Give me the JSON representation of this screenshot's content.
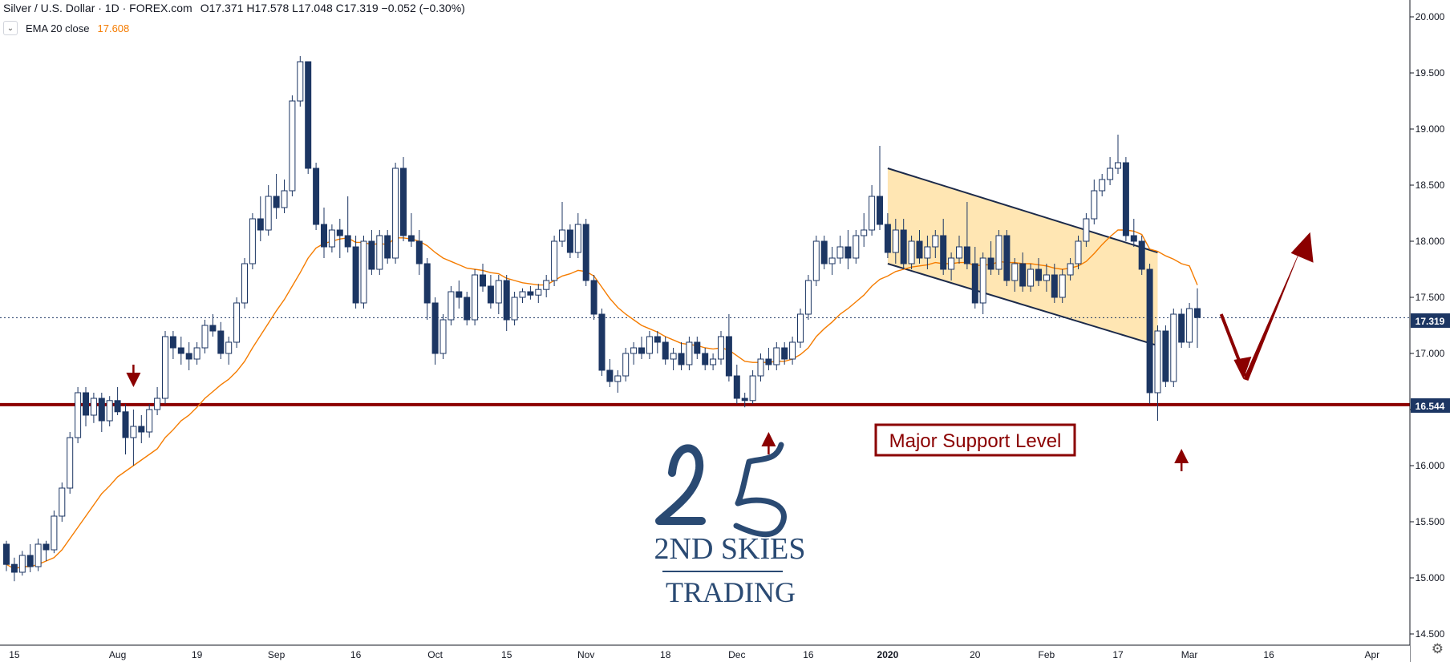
{
  "legend": {
    "title": "Silver / U.S. Dollar · 1D · FOREX.com",
    "open_label": "O",
    "open": "17.371",
    "high_label": "H",
    "high": "17.578",
    "low_label": "L",
    "low": "17.048",
    "close_label": "C",
    "close": "17.319",
    "change": "−0.052 (−0.30%)",
    "indicator": "EMA 20 close",
    "indicator_value": "17.608",
    "toggle_icon": "chevron-down-icon"
  },
  "price_tags": {
    "current": "17.319",
    "support": "16.544"
  },
  "annotation": {
    "support_label": "Major Support Level"
  },
  "logo": {
    "line1": "2ND SKIES",
    "line2": "TRADING"
  },
  "colors": {
    "bull": "#ffffff",
    "bear": "#1c3663",
    "wick": "#1c3663",
    "ema": "#f57c00",
    "support": "#8b0000",
    "channel_fill": "#ffe2a6",
    "current_line": "#1c3663",
    "logo": "#2a4a73"
  },
  "chart_data": {
    "type": "candlestick",
    "title": "Silver / U.S. Dollar",
    "timeframe": "1D",
    "source": "FOREX.com",
    "y_axis": {
      "range": [
        14.4,
        20.15
      ],
      "ticks": [
        "14.500",
        "15.000",
        "15.500",
        "16.000",
        "16.500",
        "17.000",
        "17.500",
        "18.000",
        "18.500",
        "19.000",
        "19.500",
        "20.000"
      ]
    },
    "x_axis": {
      "ticks": [
        {
          "label": "15",
          "x": 1
        },
        {
          "label": "Aug",
          "x": 14
        },
        {
          "label": "19",
          "x": 24
        },
        {
          "label": "Sep",
          "x": 34
        },
        {
          "label": "16",
          "x": 44
        },
        {
          "label": "Oct",
          "x": 54
        },
        {
          "label": "15",
          "x": 63
        },
        {
          "label": "Nov",
          "x": 73
        },
        {
          "label": "18",
          "x": 83
        },
        {
          "label": "Dec",
          "x": 92
        },
        {
          "label": "16",
          "x": 101
        },
        {
          "label": "2020",
          "x": 111
        },
        {
          "label": "20",
          "x": 122
        },
        {
          "label": "Feb",
          "x": 131
        },
        {
          "label": "17",
          "x": 140
        },
        {
          "label": "Mar",
          "x": 149
        },
        {
          "label": "16",
          "x": 159
        },
        {
          "label": "Apr",
          "x": 172
        }
      ],
      "bars_visible": 180
    },
    "support_level": 16.544,
    "current_price": 17.319,
    "ohlc": [
      [
        15.3,
        15.33,
        15.06,
        15.12
      ],
      [
        15.12,
        15.18,
        14.97,
        15.05
      ],
      [
        15.05,
        15.24,
        15.02,
        15.2
      ],
      [
        15.2,
        15.3,
        15.05,
        15.1
      ],
      [
        15.1,
        15.35,
        15.06,
        15.3
      ],
      [
        15.3,
        15.33,
        15.15,
        15.25
      ],
      [
        15.25,
        15.6,
        15.22,
        15.55
      ],
      [
        15.55,
        15.85,
        15.5,
        15.8
      ],
      [
        15.8,
        16.3,
        15.75,
        16.25
      ],
      [
        16.25,
        16.7,
        16.2,
        16.65
      ],
      [
        16.65,
        16.7,
        16.35,
        16.45
      ],
      [
        16.45,
        16.65,
        16.38,
        16.6
      ],
      [
        16.6,
        16.65,
        16.3,
        16.4
      ],
      [
        16.4,
        16.62,
        16.35,
        16.58
      ],
      [
        16.58,
        16.7,
        16.45,
        16.48
      ],
      [
        16.48,
        16.55,
        16.1,
        16.25
      ],
      [
        16.25,
        16.5,
        16.0,
        16.35
      ],
      [
        16.35,
        16.45,
        16.2,
        16.3
      ],
      [
        16.3,
        16.55,
        16.25,
        16.5
      ],
      [
        16.5,
        16.7,
        16.45,
        16.6
      ],
      [
        16.6,
        17.2,
        16.55,
        17.15
      ],
      [
        17.15,
        17.2,
        16.95,
        17.05
      ],
      [
        17.05,
        17.15,
        16.9,
        17.0
      ],
      [
        17.0,
        17.1,
        16.85,
        16.95
      ],
      [
        16.95,
        17.1,
        16.9,
        17.05
      ],
      [
        17.05,
        17.3,
        17.0,
        17.25
      ],
      [
        17.25,
        17.35,
        17.15,
        17.2
      ],
      [
        17.2,
        17.28,
        16.95,
        17.0
      ],
      [
        17.0,
        17.15,
        16.9,
        17.1
      ],
      [
        17.1,
        17.5,
        17.05,
        17.45
      ],
      [
        17.45,
        17.85,
        17.4,
        17.8
      ],
      [
        17.8,
        18.25,
        17.75,
        18.2
      ],
      [
        18.2,
        18.4,
        18.0,
        18.1
      ],
      [
        18.1,
        18.5,
        18.05,
        18.4
      ],
      [
        18.4,
        18.6,
        18.2,
        18.3
      ],
      [
        18.3,
        18.55,
        18.25,
        18.45
      ],
      [
        18.45,
        19.3,
        18.4,
        19.25
      ],
      [
        19.25,
        19.65,
        19.2,
        19.6
      ],
      [
        19.6,
        19.6,
        18.6,
        18.65
      ],
      [
        18.65,
        18.7,
        18.1,
        18.15
      ],
      [
        18.15,
        18.3,
        17.85,
        17.95
      ],
      [
        17.95,
        18.15,
        17.9,
        18.1
      ],
      [
        18.1,
        18.2,
        17.85,
        18.05
      ],
      [
        18.05,
        18.4,
        17.9,
        17.95
      ],
      [
        17.95,
        18.05,
        17.4,
        17.45
      ],
      [
        17.45,
        18.05,
        17.4,
        18.0
      ],
      [
        18.0,
        18.1,
        17.7,
        17.75
      ],
      [
        17.75,
        18.1,
        17.7,
        18.05
      ],
      [
        18.05,
        18.1,
        17.8,
        17.85
      ],
      [
        17.85,
        18.7,
        17.8,
        18.65
      ],
      [
        18.65,
        18.75,
        18.0,
        18.05
      ],
      [
        18.05,
        18.25,
        17.95,
        18.0
      ],
      [
        18.0,
        18.1,
        17.7,
        17.8
      ],
      [
        17.8,
        17.85,
        17.3,
        17.45
      ],
      [
        17.45,
        17.5,
        16.9,
        17.0
      ],
      [
        17.0,
        17.35,
        16.95,
        17.3
      ],
      [
        17.3,
        17.6,
        17.25,
        17.55
      ],
      [
        17.55,
        17.65,
        17.4,
        17.5
      ],
      [
        17.5,
        17.55,
        17.25,
        17.3
      ],
      [
        17.3,
        17.75,
        17.25,
        17.7
      ],
      [
        17.7,
        17.8,
        17.55,
        17.6
      ],
      [
        17.6,
        17.7,
        17.4,
        17.45
      ],
      [
        17.45,
        17.7,
        17.35,
        17.65
      ],
      [
        17.65,
        17.7,
        17.2,
        17.3
      ],
      [
        17.3,
        17.55,
        17.25,
        17.5
      ],
      [
        17.5,
        17.58,
        17.45,
        17.55
      ],
      [
        17.55,
        17.6,
        17.48,
        17.52
      ],
      [
        17.52,
        17.62,
        17.45,
        17.57
      ],
      [
        17.57,
        17.7,
        17.5,
        17.65
      ],
      [
        17.65,
        18.05,
        17.6,
        18.0
      ],
      [
        18.0,
        18.35,
        17.95,
        18.1
      ],
      [
        18.1,
        18.15,
        17.85,
        17.9
      ],
      [
        17.9,
        18.25,
        17.85,
        18.15
      ],
      [
        18.15,
        18.2,
        17.6,
        17.65
      ],
      [
        17.65,
        17.7,
        17.3,
        17.35
      ],
      [
        17.35,
        17.4,
        16.8,
        16.85
      ],
      [
        16.85,
        16.95,
        16.7,
        16.75
      ],
      [
        16.75,
        16.85,
        16.65,
        16.8
      ],
      [
        16.8,
        17.05,
        16.75,
        17.0
      ],
      [
        17.0,
        17.1,
        16.9,
        17.05
      ],
      [
        17.05,
        17.15,
        16.95,
        17.0
      ],
      [
        17.0,
        17.2,
        16.95,
        17.15
      ],
      [
        17.15,
        17.2,
        17.0,
        17.1
      ],
      [
        17.1,
        17.15,
        16.9,
        16.95
      ],
      [
        16.95,
        17.05,
        16.85,
        17.0
      ],
      [
        17.0,
        17.1,
        16.85,
        16.9
      ],
      [
        16.9,
        17.15,
        16.85,
        17.1
      ],
      [
        17.1,
        17.15,
        16.95,
        17.0
      ],
      [
        17.0,
        17.05,
        16.85,
        16.9
      ],
      [
        16.9,
        17.0,
        16.85,
        16.95
      ],
      [
        16.95,
        17.2,
        16.9,
        17.15
      ],
      [
        17.15,
        17.35,
        16.75,
        16.8
      ],
      [
        16.8,
        16.9,
        16.55,
        16.6
      ],
      [
        16.6,
        16.65,
        16.52,
        16.58
      ],
      [
        16.58,
        16.85,
        16.55,
        16.8
      ],
      [
        16.8,
        17.0,
        16.75,
        16.95
      ],
      [
        16.95,
        17.05,
        16.85,
        16.9
      ],
      [
        16.9,
        17.1,
        16.85,
        17.05
      ],
      [
        17.05,
        17.1,
        16.9,
        16.95
      ],
      [
        16.95,
        17.15,
        16.9,
        17.1
      ],
      [
        17.1,
        17.4,
        17.05,
        17.35
      ],
      [
        17.35,
        17.7,
        17.3,
        17.65
      ],
      [
        17.65,
        18.05,
        17.6,
        18.0
      ],
      [
        18.0,
        18.05,
        17.75,
        17.8
      ],
      [
        17.8,
        17.95,
        17.7,
        17.85
      ],
      [
        17.85,
        18.05,
        17.8,
        17.95
      ],
      [
        17.95,
        18.1,
        17.75,
        17.85
      ],
      [
        17.85,
        18.1,
        17.8,
        18.05
      ],
      [
        18.05,
        18.25,
        17.95,
        18.1
      ],
      [
        18.1,
        18.5,
        18.05,
        18.4
      ],
      [
        18.4,
        18.85,
        18.1,
        18.15
      ],
      [
        18.15,
        18.25,
        17.85,
        17.9
      ],
      [
        17.9,
        18.2,
        17.8,
        18.1
      ],
      [
        18.1,
        18.2,
        17.75,
        17.8
      ],
      [
        17.8,
        18.05,
        17.75,
        18.0
      ],
      [
        18.0,
        18.1,
        17.8,
        17.85
      ],
      [
        17.85,
        18.05,
        17.75,
        17.95
      ],
      [
        17.95,
        18.1,
        17.85,
        18.05
      ],
      [
        18.05,
        18.2,
        17.7,
        17.75
      ],
      [
        17.75,
        17.9,
        17.65,
        17.85
      ],
      [
        17.85,
        18.05,
        17.8,
        17.95
      ],
      [
        17.95,
        18.35,
        17.75,
        17.8
      ],
      [
        17.8,
        17.95,
        17.4,
        17.45
      ],
      [
        17.45,
        17.9,
        17.35,
        17.85
      ],
      [
        17.85,
        18.0,
        17.7,
        17.75
      ],
      [
        17.75,
        18.1,
        17.7,
        18.05
      ],
      [
        18.05,
        18.1,
        17.6,
        17.65
      ],
      [
        17.65,
        17.85,
        17.55,
        17.8
      ],
      [
        17.8,
        17.9,
        17.55,
        17.6
      ],
      [
        17.6,
        17.8,
        17.55,
        17.75
      ],
      [
        17.75,
        17.85,
        17.6,
        17.65
      ],
      [
        17.65,
        17.8,
        17.55,
        17.7
      ],
      [
        17.7,
        17.8,
        17.45,
        17.5
      ],
      [
        17.5,
        17.75,
        17.45,
        17.7
      ],
      [
        17.7,
        17.85,
        17.65,
        17.8
      ],
      [
        17.8,
        18.05,
        17.75,
        18.0
      ],
      [
        18.0,
        18.25,
        17.95,
        18.2
      ],
      [
        18.2,
        18.55,
        18.15,
        18.45
      ],
      [
        18.45,
        18.6,
        18.4,
        18.55
      ],
      [
        18.55,
        18.75,
        18.5,
        18.65
      ],
      [
        18.65,
        18.95,
        18.6,
        18.7
      ],
      [
        18.7,
        18.75,
        18.0,
        18.05
      ],
      [
        18.05,
        18.2,
        17.95,
        18.0
      ],
      [
        18.0,
        18.05,
        17.7,
        17.75
      ],
      [
        17.75,
        17.8,
        16.55,
        16.65
      ],
      [
        16.65,
        17.25,
        16.4,
        17.2
      ],
      [
        17.2,
        17.25,
        16.7,
        16.75
      ],
      [
        16.75,
        17.4,
        16.7,
        17.35
      ],
      [
        17.35,
        17.4,
        17.05,
        17.1
      ],
      [
        17.1,
        17.45,
        17.05,
        17.4
      ],
      [
        17.4,
        17.58,
        17.05,
        17.32
      ]
    ],
    "ema20": [
      15.12,
      15.08,
      15.1,
      15.1,
      15.12,
      15.15,
      15.18,
      15.25,
      15.35,
      15.45,
      15.55,
      15.65,
      15.75,
      15.82,
      15.9,
      15.95,
      16.0,
      16.05,
      16.1,
      16.15,
      16.25,
      16.32,
      16.4,
      16.45,
      16.52,
      16.6,
      16.66,
      16.72,
      16.77,
      16.84,
      16.93,
      17.05,
      17.16,
      17.27,
      17.38,
      17.48,
      17.6,
      17.72,
      17.85,
      17.94,
      17.98,
      18.0,
      18.02,
      18.03,
      17.99,
      17.99,
      17.97,
      17.98,
      17.97,
      18.03,
      18.03,
      18.02,
      18.0,
      17.96,
      17.9,
      17.85,
      17.82,
      17.79,
      17.76,
      17.75,
      17.74,
      17.72,
      17.71,
      17.67,
      17.65,
      17.63,
      17.62,
      17.61,
      17.61,
      17.65,
      17.69,
      17.71,
      17.74,
      17.73,
      17.69,
      17.59,
      17.49,
      17.41,
      17.35,
      17.3,
      17.25,
      17.22,
      17.19,
      17.15,
      17.12,
      17.09,
      17.08,
      17.07,
      17.05,
      17.04,
      17.05,
      17.03,
      16.98,
      16.93,
      16.92,
      16.92,
      16.92,
      16.93,
      16.93,
      16.95,
      16.99,
      17.05,
      17.15,
      17.22,
      17.28,
      17.35,
      17.4,
      17.46,
      17.52,
      17.6,
      17.66,
      17.69,
      17.73,
      17.75,
      17.77,
      17.78,
      17.79,
      17.81,
      17.8,
      17.8,
      17.81,
      17.81,
      17.78,
      17.79,
      17.79,
      17.82,
      17.81,
      17.81,
      17.8,
      17.8,
      17.79,
      17.78,
      17.76,
      17.75,
      17.76,
      17.78,
      17.82,
      17.89,
      17.97,
      18.04,
      18.1,
      18.1,
      18.09,
      18.06,
      17.93,
      17.91,
      17.87,
      17.84,
      17.8,
      17.78,
      17.61
    ],
    "channel": {
      "upper": [
        [
          111,
          18.65
        ],
        [
          145,
          17.9
        ]
      ],
      "lower": [
        [
          111,
          17.8
        ],
        [
          145,
          17.07
        ]
      ],
      "fill_to_bar": 145
    },
    "arrows": {
      "small_down": [
        {
          "bar": 16,
          "price": 16.7
        }
      ],
      "small_up": [
        {
          "bar": 96,
          "price": 16.3
        },
        {
          "bar": 148,
          "price": 16.15
        }
      ],
      "path": [
        [
          153,
          17.35
        ],
        [
          156,
          16.8
        ],
        [
          164,
          18.08
        ]
      ]
    }
  }
}
